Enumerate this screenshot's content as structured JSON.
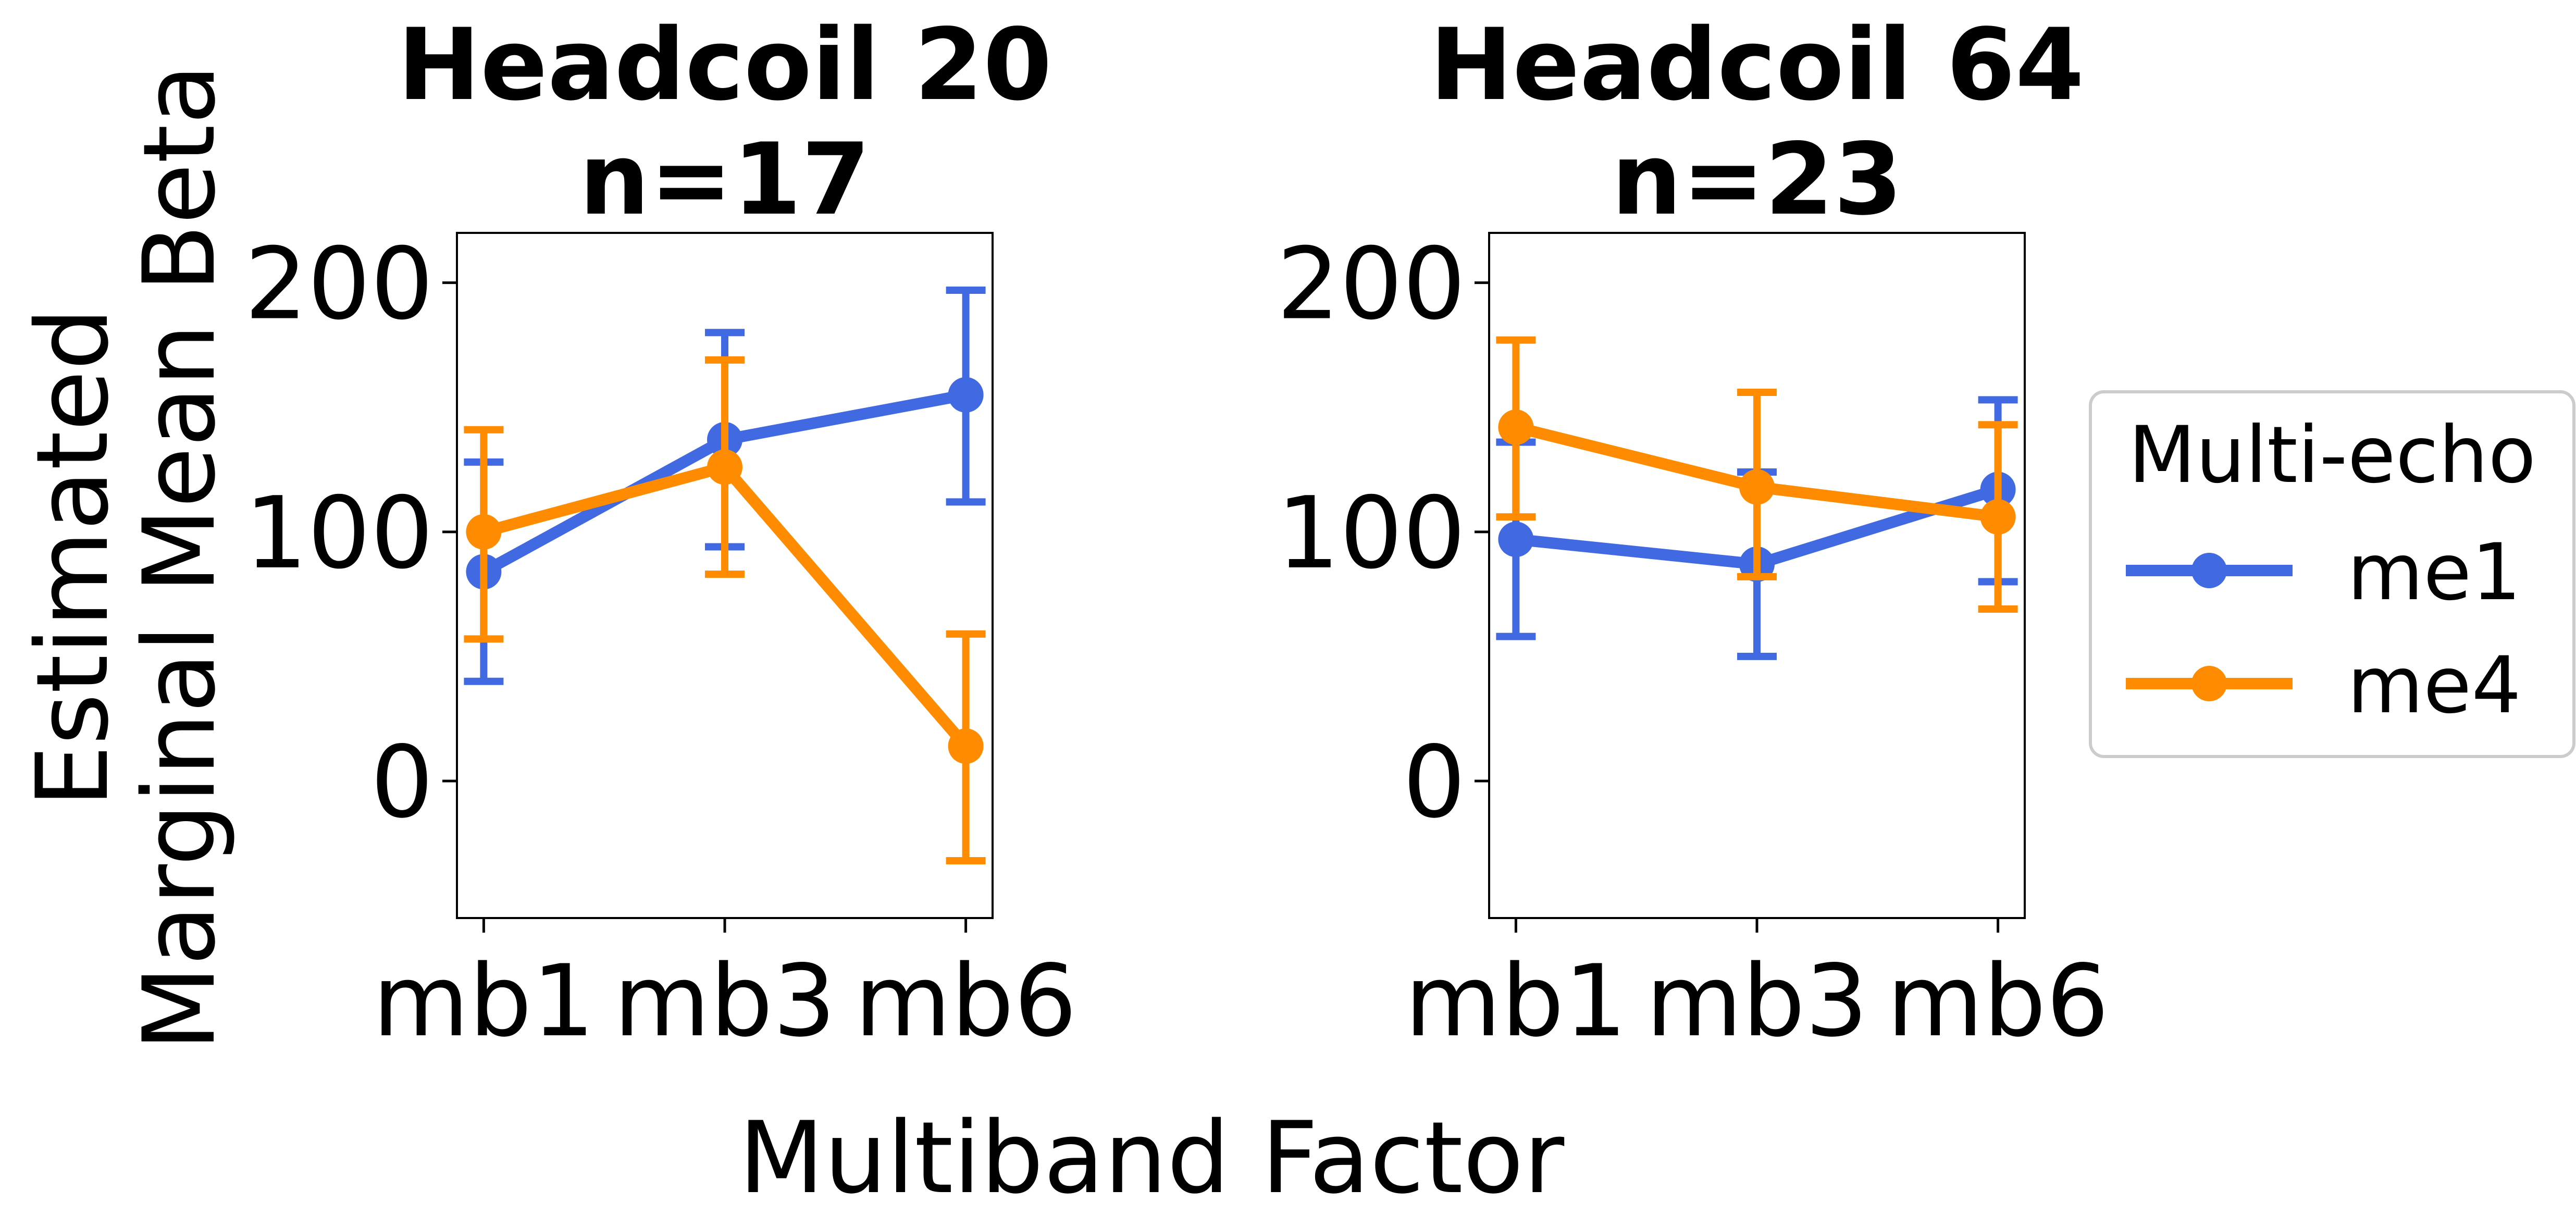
{
  "figure": {
    "xlabel": "Multiband Factor",
    "ylabel_lines": [
      "Estimated",
      "Marginal Mean Beta"
    ]
  },
  "legend": {
    "title": "Multi-echo",
    "entries": [
      {
        "label": "me1",
        "color": "#4169E1"
      },
      {
        "label": "me4",
        "color": "#FF8C00"
      }
    ]
  },
  "chart_data": [
    {
      "type": "line",
      "title_lines": [
        "Headcoil 20",
        "n=17"
      ],
      "categories": [
        "mb1",
        "mb3",
        "mb6"
      ],
      "ylim": [
        -55,
        220
      ],
      "yticks": [
        0,
        100,
        200
      ],
      "grid": false,
      "series": [
        {
          "name": "me1",
          "color": "#4169E1",
          "values": [
            84,
            137,
            155
          ],
          "err_low": [
            40,
            94,
            112
          ],
          "err_high": [
            128,
            180,
            197
          ]
        },
        {
          "name": "me4",
          "color": "#FF8C00",
          "values": [
            100,
            126,
            14
          ],
          "err_low": [
            57,
            83,
            -32
          ],
          "err_high": [
            141,
            169,
            59
          ]
        }
      ]
    },
    {
      "type": "line",
      "title_lines": [
        "Headcoil 64",
        "n=23"
      ],
      "categories": [
        "mb1",
        "mb3",
        "mb6"
      ],
      "ylim": [
        -55,
        220
      ],
      "yticks": [
        0,
        100,
        200
      ],
      "grid": false,
      "series": [
        {
          "name": "me1",
          "color": "#4169E1",
          "values": [
            97,
            87,
            117
          ],
          "err_low": [
            58,
            50,
            80
          ],
          "err_high": [
            136,
            124,
            153
          ]
        },
        {
          "name": "me4",
          "color": "#FF8C00",
          "values": [
            142,
            118,
            106
          ],
          "err_low": [
            106,
            82,
            69
          ],
          "err_high": [
            177,
            156,
            143
          ]
        }
      ]
    }
  ]
}
